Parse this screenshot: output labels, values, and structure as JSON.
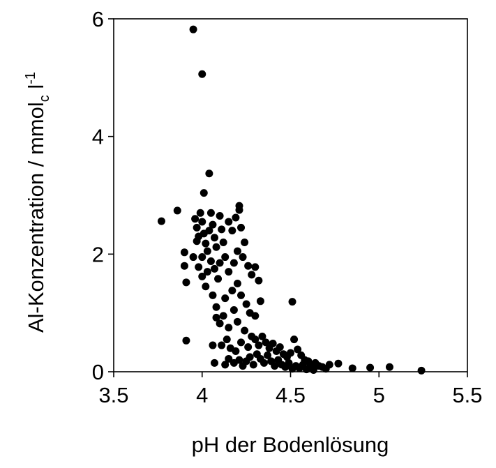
{
  "chart_data": {
    "type": "scatter",
    "xlabel": "pH der Bodenlösung",
    "ylabel": {
      "main": "Al-Konzentration  /  mmol",
      "sub": "c",
      "unit": " l",
      "sup": "-1"
    },
    "color": "#000000",
    "xlim": [
      3.5,
      5.5
    ],
    "xticks": [
      {
        "value": 3.5,
        "label": "3.5"
      },
      4,
      {
        "value": 4.5,
        "label": "4.5"
      },
      5,
      {
        "value": 5.5,
        "label": "5.5"
      }
    ],
    "ylim": [
      0,
      6
    ],
    "yticks": [
      0,
      2,
      4,
      6
    ],
    "x": [
      3.95,
      4.0,
      4.04,
      4.01,
      3.77,
      3.86,
      4.21,
      3.9,
      3.9,
      3.91,
      3.91,
      4.51,
      5.24,
      5.06,
      4.95,
      4.85,
      4.77,
      3.96,
      3.97,
      3.98,
      3.97,
      3.99,
      4.0,
      4.01,
      4.02,
      4.0,
      3.98,
      4.0,
      4.03,
      4.05,
      4.06,
      4.04,
      4.07,
      4.08,
      4.05,
      4.07,
      4.09,
      4.1,
      4.11,
      4.12,
      4.13,
      4.1,
      4.03,
      3.95,
      4.02,
      4.06,
      4.08,
      4.15,
      4.17,
      4.19,
      4.21,
      4.22,
      4.24,
      4.2,
      4.18,
      4.15,
      4.23,
      4.26,
      4.28,
      4.3,
      4.32,
      4.2,
      4.17,
      4.13,
      4.22,
      4.25,
      4.27,
      4.18,
      4.12,
      4.1,
      4.15,
      4.2,
      4.24,
      4.3,
      4.33,
      4.28,
      4.14,
      4.11,
      4.16,
      4.22,
      4.19,
      4.26,
      4.08,
      4.06,
      4.07,
      4.3,
      4.32,
      4.34,
      4.36,
      4.38,
      4.4,
      4.42,
      4.44,
      4.46,
      4.48,
      4.5,
      4.52,
      4.54,
      4.56,
      4.58,
      4.6,
      4.62,
      4.64,
      4.66,
      4.68,
      4.7,
      4.72,
      4.31,
      4.33,
      4.35,
      4.37,
      4.39,
      4.41,
      4.43,
      4.45,
      4.47,
      4.49,
      4.51,
      4.53,
      4.55,
      4.57,
      4.59,
      4.61,
      4.63,
      4.27,
      4.29,
      4.25,
      4.23,
      4.21,
      4.18,
      4.15,
      4.13
    ],
    "values": [
      5.82,
      5.06,
      3.37,
      3.04,
      2.56,
      2.74,
      2.82,
      2.03,
      1.8,
      1.52,
      0.53,
      1.19,
      0.02,
      0.08,
      0.07,
      0.06,
      0.14,
      2.6,
      2.45,
      2.3,
      2.22,
      2.7,
      2.55,
      2.35,
      2.18,
      1.95,
      1.78,
      1.62,
      2.05,
      2.7,
      2.5,
      2.4,
      2.28,
      2.12,
      1.88,
      1.75,
      1.58,
      2.65,
      2.42,
      2.2,
      1.95,
      1.85,
      1.7,
      1.95,
      1.45,
      1.3,
      1.1,
      2.55,
      2.4,
      2.62,
      2.75,
      2.45,
      2.2,
      2.05,
      1.85,
      1.7,
      1.95,
      1.8,
      1.65,
      1.78,
      1.55,
      1.5,
      1.38,
      1.25,
      1.3,
      1.15,
      1.0,
      1.05,
      0.95,
      0.82,
      0.75,
      0.85,
      0.7,
      0.95,
      1.2,
      0.6,
      0.55,
      0.45,
      0.4,
      0.5,
      0.35,
      0.42,
      0.92,
      0.45,
      0.15,
      0.55,
      0.45,
      0.6,
      0.5,
      0.4,
      0.48,
      0.35,
      0.42,
      0.3,
      0.25,
      0.32,
      0.55,
      0.38,
      0.28,
      0.2,
      0.18,
      0.12,
      0.15,
      0.1,
      0.08,
      0.05,
      0.12,
      0.3,
      0.22,
      0.15,
      0.28,
      0.18,
      0.1,
      0.2,
      0.12,
      0.08,
      0.15,
      0.05,
      0.1,
      0.06,
      0.12,
      0.04,
      0.08,
      0.03,
      0.25,
      0.12,
      0.18,
      0.1,
      0.2,
      0.15,
      0.22,
      0.12
    ]
  }
}
